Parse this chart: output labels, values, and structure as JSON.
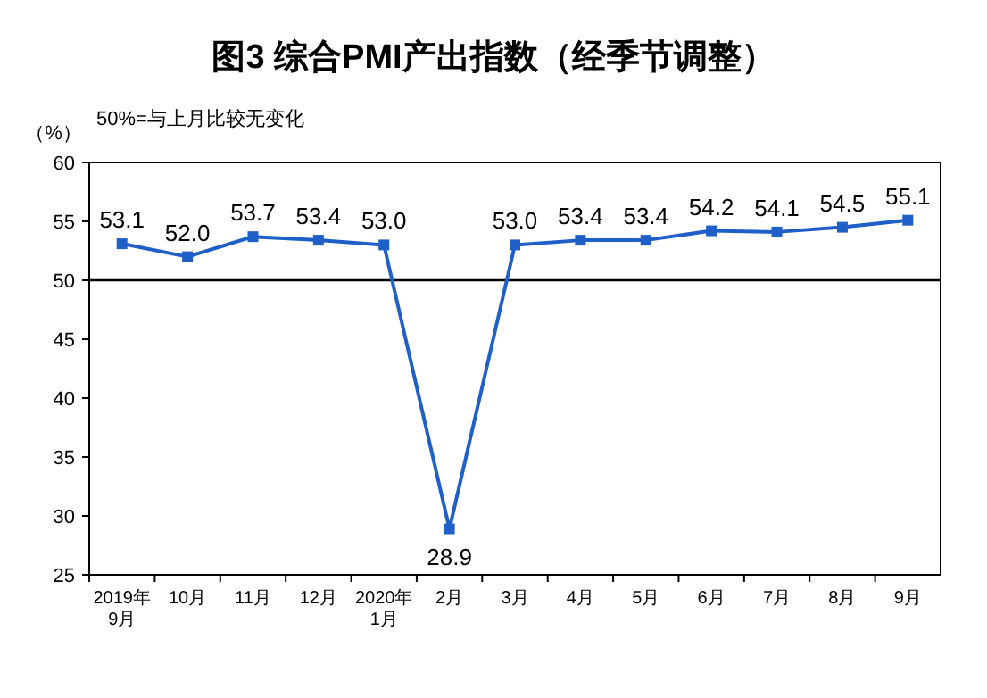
{
  "chart_data": {
    "type": "line",
    "title": "图3 综合PMI产出指数（经季节调整）",
    "ylabel": "（%）",
    "annotations": [
      "50%=与上月比较无变化"
    ],
    "categories": [
      "2019年\n9月",
      "10月",
      "11月",
      "12月",
      "2020年\n1月",
      "2月",
      "3月",
      "4月",
      "5月",
      "6月",
      "7月",
      "8月",
      "9月"
    ],
    "series": [
      {
        "color": "#1f5fc8",
        "values": [
          53.1,
          52.0,
          53.7,
          53.4,
          53.0,
          28.9,
          53.0,
          53.4,
          53.4,
          54.2,
          54.1,
          54.5,
          55.1
        ],
        "value_labels": [
          "53.1",
          "52.0",
          "53.7",
          "53.4",
          "53.0",
          "28.9",
          "53.0",
          "53.4",
          "53.4",
          "54.2",
          "54.1",
          "54.5",
          "55.1"
        ]
      }
    ],
    "ylim": [
      25,
      60
    ],
    "yticks": [
      25,
      30,
      35,
      40,
      45,
      50,
      55,
      60
    ],
    "ref_lines": [
      {
        "axis": "y",
        "value": 50,
        "color": "#000000"
      }
    ],
    "marker": "square",
    "line_style": "solid",
    "grid": false
  }
}
